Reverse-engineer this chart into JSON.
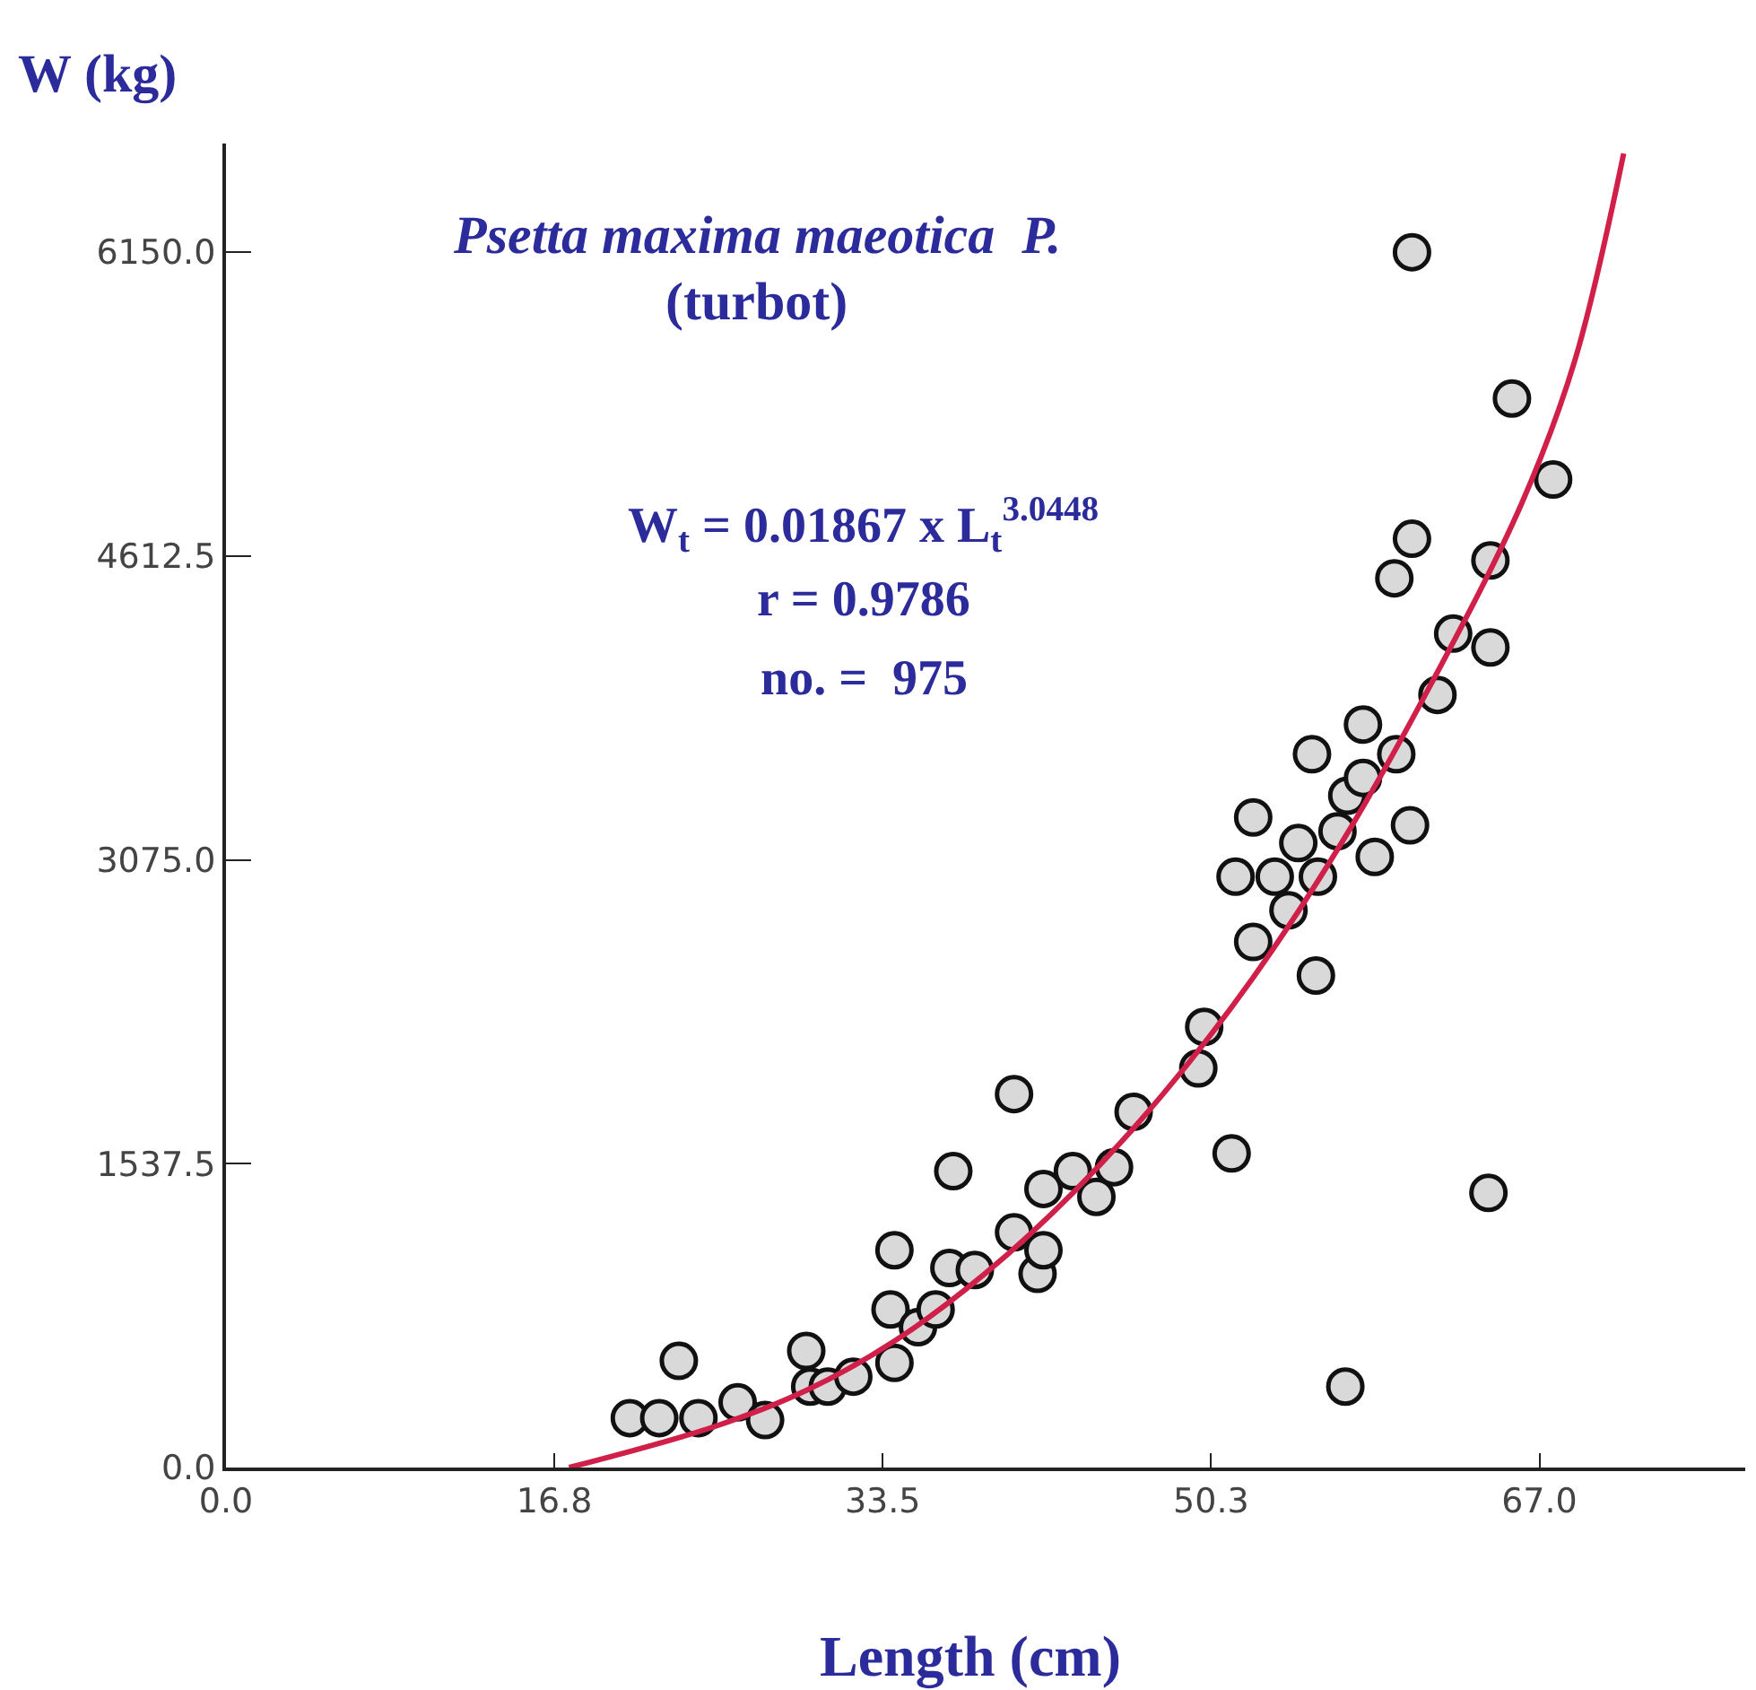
{
  "chart_data": {
    "type": "scatter",
    "title": "Psetta maxima maeotica  P.",
    "subtitle": "(turbot)",
    "xlabel": "Length (cm)",
    "ylabel": "W (kg)",
    "annotations": [
      "W$_{t}$ = 0.01867 x L$_{t}$$^{3.0448}$",
      "r = 0.9786",
      "no. =  975"
    ],
    "xlim": [
      0,
      77.5
    ],
    "ylim": [
      0,
      6700
    ],
    "xticks": [
      {
        "value": 0,
        "label": "0.0"
      },
      {
        "value": 16.75,
        "label": "16.8"
      },
      {
        "value": 33.5,
        "label": "33.5"
      },
      {
        "value": 50.25,
        "label": "50.3"
      },
      {
        "value": 67,
        "label": "67.0"
      }
    ],
    "yticks": [
      {
        "value": 0,
        "label": "0.0"
      },
      {
        "value": 1537.5,
        "label": "1537.5"
      },
      {
        "value": 3075,
        "label": "3075.0"
      },
      {
        "value": 4612.5,
        "label": "4612.5"
      },
      {
        "value": 6150,
        "label": "6150.0"
      }
    ],
    "series": [
      {
        "marker": "circle",
        "color": "#d9d9d9",
        "x": [
          20.6,
          22.1,
          23.1,
          24.1,
          26.1,
          27.5,
          29.6,
          29.8,
          30.7,
          32.0,
          33.9,
          34.1,
          34.1,
          35.3,
          36.2,
          36.9,
          37.1,
          38.2,
          40.2,
          40.2,
          41.4,
          41.7,
          41.7,
          43.2,
          44.4,
          45.3,
          46.3,
          49.6,
          49.9,
          51.3,
          51.5,
          52.4,
          52.4,
          53.5,
          54.2,
          54.7,
          55.4,
          55.6,
          55.7,
          56.7,
          57.1,
          57.2,
          58.0,
          58.0,
          58.6,
          59.6,
          59.7,
          60.4,
          60.5,
          60.5,
          61.8,
          62.6,
          64.4,
          64.5,
          64.5,
          65.6,
          67.7
        ],
        "values": [
          250,
          250,
          540,
          250,
          330,
          240,
          590,
          410,
          410,
          460,
          800,
          530,
          1100,
          710,
          800,
          1010,
          1500,
          1000,
          1890,
          1190,
          980,
          1100,
          1410,
          1500,
          1370,
          1520,
          1800,
          2020,
          2230,
          1590,
          2990,
          3290,
          2660,
          2990,
          2820,
          3160,
          3610,
          2490,
          2990,
          3220,
          410,
          3400,
          3760,
          3490,
          3090,
          4500,
          3610,
          3250,
          6150,
          4700,
          3910,
          4220,
          1390,
          4590,
          4150,
          5410,
          5000
        ]
      },
      {
        "type": "line",
        "color": "#d0204a",
        "x": [
          17.5,
          25.0,
          29.6,
          34.1,
          38.7,
          43.2,
          47.8,
          52.4,
          56.9,
          61.5,
          66.1,
          68.8,
          71.3
        ],
        "values": [
          0,
          210,
          390,
          640,
          980,
          1390,
          1890,
          2480,
          3160,
          3970,
          4880,
          5600,
          6650
        ]
      }
    ]
  }
}
